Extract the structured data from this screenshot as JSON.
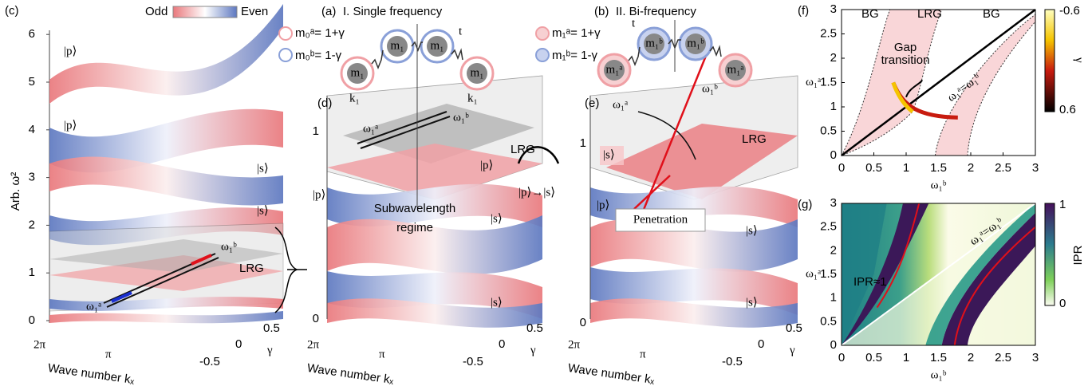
{
  "panel_c": {
    "label": "(c)",
    "colorbar_low": "Odd",
    "colorbar_high": "Even",
    "y_axis_label": "Arb. ω²",
    "yticks": [
      0,
      1,
      2,
      3,
      4,
      5,
      6
    ],
    "states": [
      "|p⟩",
      "|p⟩",
      "|s⟩",
      "|s⟩"
    ],
    "omega_a": "ω₁ᵃ",
    "omega_b": "ω₁ᵇ",
    "gap": "LRG",
    "x_axis_label": "Wave number kₓ",
    "kticks": [
      "2π",
      "π"
    ],
    "gamma_label": "γ",
    "gticks": [
      0.5,
      0,
      -0.5
    ]
  },
  "panel_a": {
    "label": "(a)",
    "title": "I. Single frequency",
    "legend": [
      "m₀ᵃ= 1+γ",
      "m₀ᵇ= 1-γ"
    ],
    "masses": [
      "m₁",
      "m₁",
      "m₁",
      "m₁"
    ],
    "springs": [
      "t",
      "k₁",
      "k₁"
    ]
  },
  "panel_d": {
    "label": "(d)",
    "zticks": [
      0,
      1
    ],
    "omega_a": "ω₁ᵃ",
    "omega_b": "ω₁ᵇ",
    "gap": "LRG",
    "states": [
      "|p⟩",
      "|p⟩",
      "|s⟩",
      "|s⟩"
    ],
    "region": [
      "Subwavelength",
      "regime"
    ],
    "x_axis_label": "Wave number kₓ",
    "kticks": [
      "2π",
      "π"
    ],
    "gamma_label": "γ",
    "gticks": [
      0.5,
      0,
      -0.5
    ]
  },
  "transition": "|p⟩→|s⟩",
  "panel_b": {
    "label": "(b)",
    "title": "II. Bi-frequency",
    "legend": [
      "m₁ᵃ= 1+γ",
      "m₁ᵇ= 1-γ"
    ],
    "masses": [
      "m₁ᵃ",
      "m₁ᵇ",
      "m₁ᵇ",
      "m₁ᵃ"
    ],
    "springs": [
      "t"
    ]
  },
  "panel_e": {
    "label": "(e)",
    "zticks": [
      0,
      1
    ],
    "omega_a": "ω₁ᵃ",
    "omega_b": "ω₁ᵇ",
    "gap": "LRG",
    "states": [
      "|s⟩",
      "|p⟩",
      "|s⟩",
      "|s⟩"
    ],
    "annotation": "Penetration",
    "x_axis_label": "Wave number kₓ",
    "kticks": [
      "2π",
      "π"
    ],
    "gamma_label": "γ",
    "gticks": [
      0.5,
      0,
      -0.5
    ]
  },
  "panel_f": {
    "label": "(f)",
    "xticks": [
      0,
      0.5,
      1,
      1.5,
      2,
      2.5,
      3
    ],
    "yticks": [
      0,
      0.5,
      1,
      1.5,
      2,
      2.5,
      3
    ],
    "x_label": "ω₁ᵇ",
    "y_label": "ω₁ᵃ",
    "regions": [
      "BG",
      "LRG",
      "BG"
    ],
    "annotation": [
      "Gap",
      "transition"
    ],
    "diagonal": "ω₁ᵃ=ω₁ᵇ",
    "colorbar_ticks": [
      -0.6,
      0.6
    ],
    "colorbar_label": "γ"
  },
  "panel_g": {
    "label": "(g)",
    "xticks": [
      0,
      0.5,
      1,
      1.5,
      2,
      2.5,
      3
    ],
    "yticks": [
      0,
      0.5,
      1,
      1.5,
      2,
      2.5,
      3
    ],
    "x_label": "ω₁ᵇ",
    "y_label": "ω₁ᵃ",
    "annotation": "IPR≈1",
    "diagonal": "ω₁ᵃ=ω₁ᵇ",
    "colorbar_ticks": [
      1,
      0
    ],
    "colorbar_label": "IPR"
  }
}
